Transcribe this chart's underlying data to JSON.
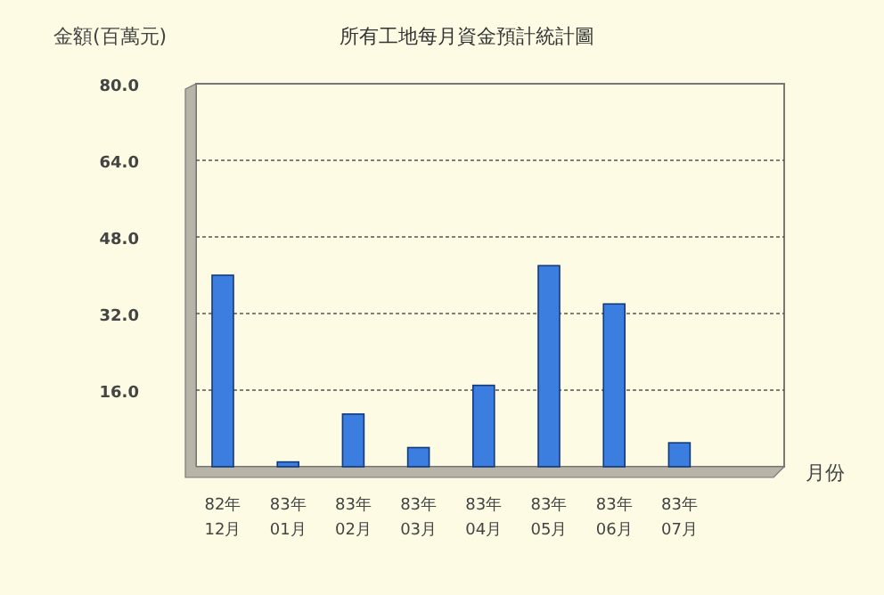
{
  "chart_data": {
    "type": "bar",
    "title": "所有工地每月資金預計統計圖",
    "ylabel": "金額(百萬元)",
    "xlabel": "月份",
    "categories": [
      "82年 12月",
      "83年 01月",
      "83年 02月",
      "83年 03月",
      "83年 04月",
      "83年 05月",
      "83年 06月",
      "83年 07月"
    ],
    "values": [
      40,
      1,
      11,
      4,
      17,
      42,
      34,
      5
    ],
    "color": "#3c7ee0",
    "ylim": [
      0,
      80
    ],
    "yticks": [
      {
        "value": 16,
        "label": "16.0"
      },
      {
        "value": 32,
        "label": "32.0"
      },
      {
        "value": 48,
        "label": "48.0"
      },
      {
        "value": 64,
        "label": "64.0"
      },
      {
        "value": 80,
        "label": "80.0"
      }
    ],
    "grid": "y"
  }
}
